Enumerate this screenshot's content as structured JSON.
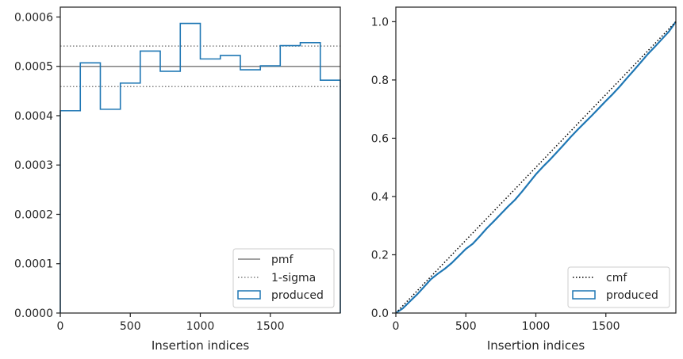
{
  "chart_data": [
    {
      "type": "histogram",
      "xlabel": "Insertion indices",
      "ylabel": "",
      "xlim": [
        0,
        2000
      ],
      "ylim": [
        0,
        0.00062
      ],
      "x_ticks": [
        0,
        500,
        1000,
        1500
      ],
      "y_ticks": [
        0.0,
        0.0001,
        0.0002,
        0.0003,
        0.0004,
        0.0005,
        0.0006
      ],
      "y_tick_labels": [
        "0.0000",
        "0.0001",
        "0.0002",
        "0.0003",
        "0.0004",
        "0.0005",
        "0.0006"
      ],
      "bin_edges": [
        0,
        143,
        286,
        429,
        571,
        714,
        857,
        1000,
        1143,
        1286,
        1429,
        1571,
        1714,
        1857,
        2000
      ],
      "series": [
        {
          "name": "produced",
          "style": "step",
          "color": "#1f77b4",
          "values": [
            0.00041,
            0.000507,
            0.000413,
            0.000466,
            0.000531,
            0.00049,
            0.000587,
            0.000515,
            0.000522,
            0.000493,
            0.000501,
            0.000542,
            0.000548,
            0.000472
          ]
        }
      ],
      "reference_lines": [
        {
          "name": "pmf",
          "value": 0.0005,
          "style": "solid",
          "color": "#808080"
        },
        {
          "name": "1-sigma",
          "values": [
            0.000541,
            0.000459
          ],
          "style": "dotted",
          "color": "#808080"
        }
      ],
      "legend": {
        "position": "lower-right",
        "entries": [
          {
            "label": "pmf",
            "kind": "line-solid",
            "color": "#808080"
          },
          {
            "label": "1-sigma",
            "kind": "line-dotted",
            "color": "#808080"
          },
          {
            "label": "produced",
            "kind": "patch",
            "color": "#1f77b4"
          }
        ]
      }
    },
    {
      "type": "line",
      "xlabel": "Insertion indices",
      "ylabel": "",
      "xlim": [
        0,
        2000
      ],
      "ylim": [
        0,
        1.05
      ],
      "x_ticks": [
        0,
        500,
        1000,
        1500
      ],
      "y_ticks": [
        0.0,
        0.2,
        0.4,
        0.6,
        0.8,
        1.0
      ],
      "y_tick_labels": [
        "0.0",
        "0.2",
        "0.4",
        "0.6",
        "0.8",
        "1.0"
      ],
      "series": [
        {
          "name": "cmf",
          "style": "dotted",
          "color": "#000000",
          "x": [
            0,
            2000
          ],
          "y": [
            0,
            1.0
          ]
        },
        {
          "name": "produced",
          "style": "step",
          "color": "#1f77b4",
          "x": [
            0,
            50,
            100,
            150,
            200,
            250,
            300,
            350,
            400,
            450,
            500,
            550,
            600,
            650,
            700,
            750,
            800,
            850,
            900,
            950,
            1000,
            1050,
            1100,
            1150,
            1200,
            1250,
            1300,
            1350,
            1400,
            1450,
            1500,
            1550,
            1600,
            1650,
            1700,
            1750,
            1800,
            1850,
            1900,
            1950,
            2000
          ],
          "y": [
            0,
            0.016,
            0.04,
            0.063,
            0.089,
            0.116,
            0.135,
            0.152,
            0.172,
            0.196,
            0.22,
            0.238,
            0.264,
            0.291,
            0.315,
            0.34,
            0.365,
            0.388,
            0.416,
            0.446,
            0.476,
            0.502,
            0.526,
            0.552,
            0.578,
            0.605,
            0.63,
            0.654,
            0.678,
            0.703,
            0.728,
            0.752,
            0.778,
            0.806,
            0.833,
            0.861,
            0.889,
            0.914,
            0.94,
            0.966,
            1.0
          ]
        }
      ],
      "legend": {
        "position": "lower-right",
        "entries": [
          {
            "label": "cmf",
            "kind": "line-dotted",
            "color": "#000000"
          },
          {
            "label": "produced",
            "kind": "patch",
            "color": "#1f77b4"
          }
        ]
      }
    }
  ]
}
